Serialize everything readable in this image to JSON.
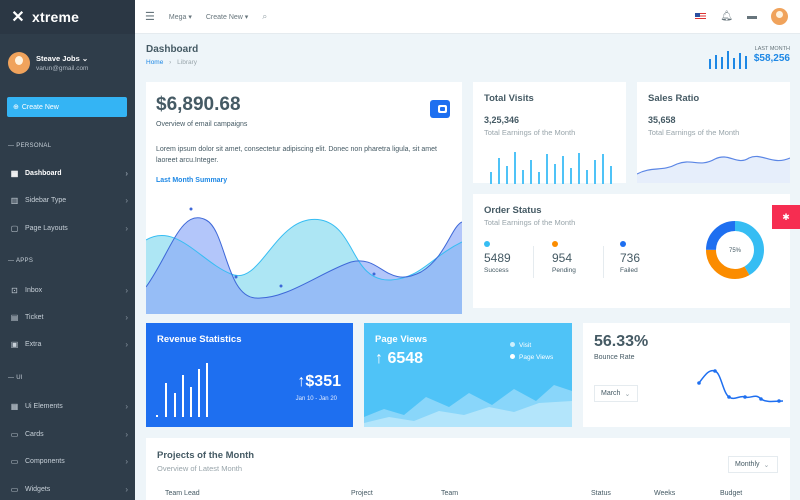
{
  "brand": {
    "name": "xtreme"
  },
  "user": {
    "name": "Steave Jobs",
    "email": "varun@gmail.com"
  },
  "sidebar": {
    "create_label": "Create New",
    "sections": [
      "PERSONAL",
      "APPS",
      "UI"
    ],
    "items": [
      {
        "label": "Dashboard",
        "icon": "dashboard-icon"
      },
      {
        "label": "Sidebar Type",
        "icon": "sidebar-type-icon"
      },
      {
        "label": "Page Layouts",
        "icon": "page-layouts-icon"
      },
      {
        "label": "Inbox",
        "icon": "inbox-icon"
      },
      {
        "label": "Ticket",
        "icon": "ticket-icon"
      },
      {
        "label": "Extra",
        "icon": "extra-icon"
      },
      {
        "label": "Ui Elements",
        "icon": "ui-elements-icon"
      },
      {
        "label": "Cards",
        "icon": "cards-icon"
      },
      {
        "label": "Components",
        "icon": "components-icon"
      },
      {
        "label": "Widgets",
        "icon": "widgets-icon"
      }
    ]
  },
  "topbar": {
    "mega": "Mega",
    "create_new": "Create New"
  },
  "page": {
    "title": "Dashboard",
    "breadcrumb_home": "Home",
    "breadcrumb_current": "Library"
  },
  "last_month": {
    "label": "LAST MONTH",
    "value": "$58,256"
  },
  "email_card": {
    "amount": "$6,890.68",
    "subtitle": "Overview of email campaigns",
    "body": "Lorem ipsum dolor sit amet, consectetur adipiscing elit. Donec non pharetra ligula, sit amet laoreet arcu.Integer.",
    "link": "Last Month Summary"
  },
  "total_visits": {
    "title": "Total Visits",
    "value": "3,25,346",
    "sub": "Total Earnings of the Month"
  },
  "sales_ratio": {
    "title": "Sales Ratio",
    "value": "35,658",
    "sub": "Total Earnings of the Month"
  },
  "order_status": {
    "title": "Order Status",
    "sub": "Total Earnings of the Month",
    "stats": [
      {
        "value": "5489",
        "label": "Success",
        "color": "#36bdf3"
      },
      {
        "value": "954",
        "label": "Pending",
        "color": "#fb8c00"
      },
      {
        "value": "736",
        "label": "Failed",
        "color": "#1e6ff0"
      }
    ],
    "donut_label": "75%",
    "donut_percent": 75
  },
  "revenue": {
    "title": "Revenue Statistics",
    "value": "$351",
    "range": "Jan 10 - Jan 20"
  },
  "page_views": {
    "title": "Page Views",
    "value": "6548",
    "legend_visit": "Visit",
    "legend_pageviews": "Page Views"
  },
  "bounce": {
    "value": "56.33%",
    "label": "Bounce Rate",
    "select": "March"
  },
  "projects": {
    "title": "Projects of the Month",
    "sub": "Overview of Latest Month",
    "select": "Monthly",
    "columns": [
      "Team Lead",
      "Project",
      "Team",
      "Status",
      "Weeks",
      "Budget"
    ]
  },
  "colors": {
    "accent": "#1e88e5",
    "sidebar": "#2f3d4a",
    "revenue": "#1e6ff0",
    "pageviews": "#4fc3f7",
    "settings_tab": "#f62d51"
  }
}
